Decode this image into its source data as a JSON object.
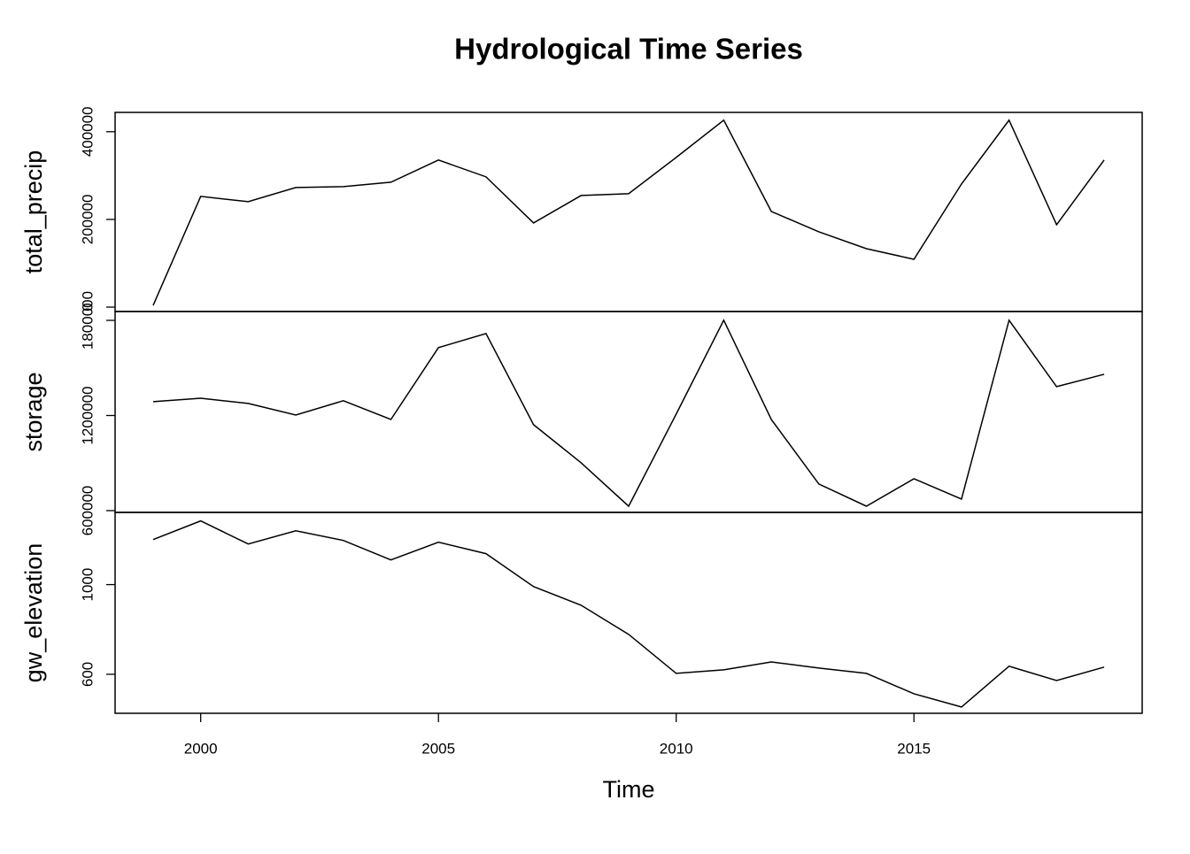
{
  "chart_data": [
    {
      "type": "line",
      "title": "Hydrological Time Series",
      "y_label": "total_precip",
      "color": "#000000",
      "x": [
        1999,
        2000,
        2001,
        2002,
        2003,
        2004,
        2005,
        2006,
        2007,
        2008,
        2009,
        2010,
        2011,
        2012,
        2013,
        2014,
        2015,
        2016,
        2017,
        2018,
        2019
      ],
      "values": [
        4000,
        252500,
        240400,
        272700,
        274700,
        284800,
        335400,
        297000,
        191900,
        254500,
        258600,
        341400,
        426300,
        218200,
        171700,
        133300,
        109100,
        280800,
        426300,
        187900,
        335400
      ],
      "xlim": [
        1998.2,
        2019.8
      ],
      "ylim": [
        -10000,
        444000
      ],
      "yticks": [
        0,
        200000,
        400000
      ]
    },
    {
      "type": "line",
      "y_label": "storage",
      "color": "#000000",
      "x": [
        1999,
        2000,
        2001,
        2002,
        2003,
        2004,
        2005,
        2006,
        2007,
        2008,
        2009,
        2010,
        2011,
        2012,
        2013,
        2014,
        2015,
        2016,
        2017,
        2018,
        2019
      ],
      "values": [
        1287000,
        1309000,
        1276000,
        1203000,
        1293000,
        1175000,
        1628000,
        1717000,
        1142000,
        902000,
        628000,
        1209000,
        1801000,
        1175000,
        768000,
        628000,
        801000,
        673000,
        1801000,
        1382000,
        1460000
      ],
      "xlim": [
        1998.2,
        2019.8
      ],
      "ylim": [
        588800,
        1855900
      ],
      "yticks": [
        600000,
        1200000,
        1800000
      ]
    },
    {
      "type": "line",
      "y_label": "gw_elevation",
      "x_label": "Time",
      "color": "#000000",
      "x": [
        1999,
        2000,
        2001,
        2002,
        2003,
        2004,
        2005,
        2006,
        2007,
        2008,
        2009,
        2010,
        2011,
        2012,
        2013,
        2014,
        2015,
        2016,
        2017,
        2018,
        2019
      ],
      "values": [
        1201,
        1284,
        1181,
        1240,
        1197,
        1110,
        1189,
        1138,
        991,
        908,
        778,
        604,
        620,
        655,
        628,
        604,
        513,
        454,
        636,
        572,
        632
      ],
      "xlim": [
        1998.2,
        2019.8
      ],
      "ylim": [
        426,
        1322
      ],
      "yticks": [
        600,
        1000
      ],
      "xticks": [
        2000,
        2005,
        2010,
        2015
      ]
    }
  ]
}
